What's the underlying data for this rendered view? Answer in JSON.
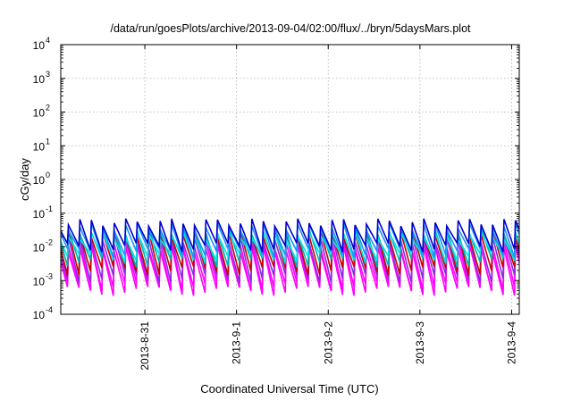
{
  "chart_data": {
    "type": "line",
    "title": "/data/run/goesPlots/archive/2013-09-04/02:00/flux/../bryn/5daysMars.plot",
    "xlabel": "Coordinated Universal Time (UTC)",
    "ylabel": "cGy/day",
    "y_scale": "log",
    "ylim": [
      0.0001,
      10000
    ],
    "y_ticks": [
      {
        "base": "10",
        "exp": "-4",
        "value": 0.0001
      },
      {
        "base": "10",
        "exp": "-3",
        "value": 0.001
      },
      {
        "base": "10",
        "exp": "-2",
        "value": 0.01
      },
      {
        "base": "10",
        "exp": "-1",
        "value": 0.1
      },
      {
        "base": "10",
        "exp": "0",
        "value": 1
      },
      {
        "base": "10",
        "exp": "1",
        "value": 10
      },
      {
        "base": "10",
        "exp": "2",
        "value": 100
      },
      {
        "base": "10",
        "exp": "3",
        "value": 1000
      },
      {
        "base": "10",
        "exp": "4",
        "value": 10000
      }
    ],
    "xlim": [
      "2013-08-30T02:00",
      "2013-09-04T02:00"
    ],
    "x_ticks": [
      {
        "label": "2013-8-31",
        "date": "2013-08-31T00:00"
      },
      {
        "label": "2013-9-1",
        "date": "2013-09-01T00:00"
      },
      {
        "label": "2013-9-2",
        "date": "2013-09-02T00:00"
      },
      {
        "label": "2013-9-3",
        "date": "2013-09-03T00:00"
      },
      {
        "label": "2013-9-4",
        "date": "2013-09-04T00:00"
      }
    ],
    "grid": true,
    "sawtooth_period_hours": 3,
    "series": [
      {
        "color": "#ff00ff",
        "peak": 0.009,
        "trough": 0.0005
      },
      {
        "color": "#ff00ff",
        "peak": 0.012,
        "trough": 0.0007
      },
      {
        "color": "#8a2be2",
        "peak": 0.018,
        "trough": 0.0012
      },
      {
        "color": "#cc0000",
        "peak": 0.025,
        "trough": 0.002
      },
      {
        "color": "#00b3b3",
        "peak": 0.03,
        "trough": 0.0035
      },
      {
        "color": "#00e5e5",
        "peak": 0.022,
        "trough": 0.005
      },
      {
        "color": "#1e90ff",
        "peak": 0.04,
        "trough": 0.007
      },
      {
        "color": "#0000cd",
        "peak": 0.055,
        "trough": 0.01
      }
    ]
  }
}
